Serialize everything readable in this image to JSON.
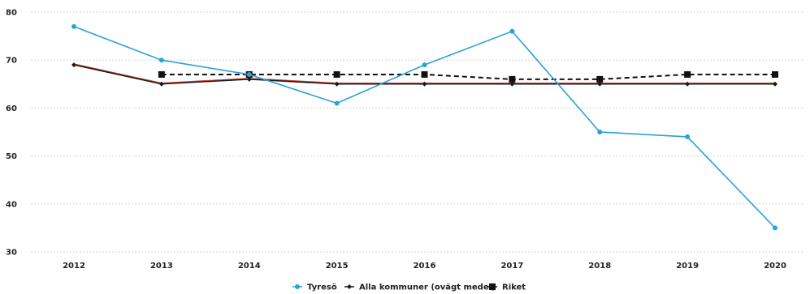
{
  "chart_data": {
    "type": "line",
    "title": "",
    "xlabel": "",
    "ylabel": "",
    "x": [
      "2012",
      "2013",
      "2014",
      "2015",
      "2016",
      "2017",
      "2018",
      "2019",
      "2020"
    ],
    "ylim": [
      30,
      80
    ],
    "yticks": [
      "30",
      "40",
      "50",
      "60",
      "70",
      "80"
    ],
    "grid": true,
    "legend_position": "bottom-center",
    "series": [
      {
        "name": "Tyresö",
        "color": "#29a3d6",
        "marker": "circle",
        "line_style": "solid",
        "values": [
          77,
          70,
          67,
          61,
          69,
          76,
          55,
          54,
          35
        ]
      },
      {
        "name": "Alla kommuner (ovägt medel)",
        "color": "#1a1a1a",
        "marker": "diamond",
        "line_style": "solid",
        "values": [
          69,
          65,
          66,
          65,
          65,
          65,
          65,
          65,
          65
        ]
      },
      {
        "name": "Riket",
        "color": "#111111",
        "marker": "square",
        "line_style": "dashed",
        "values": [
          null,
          67,
          67,
          67,
          67,
          66,
          66,
          67,
          67
        ]
      }
    ]
  },
  "accent_colors": {
    "red_line": "#c0392b"
  }
}
